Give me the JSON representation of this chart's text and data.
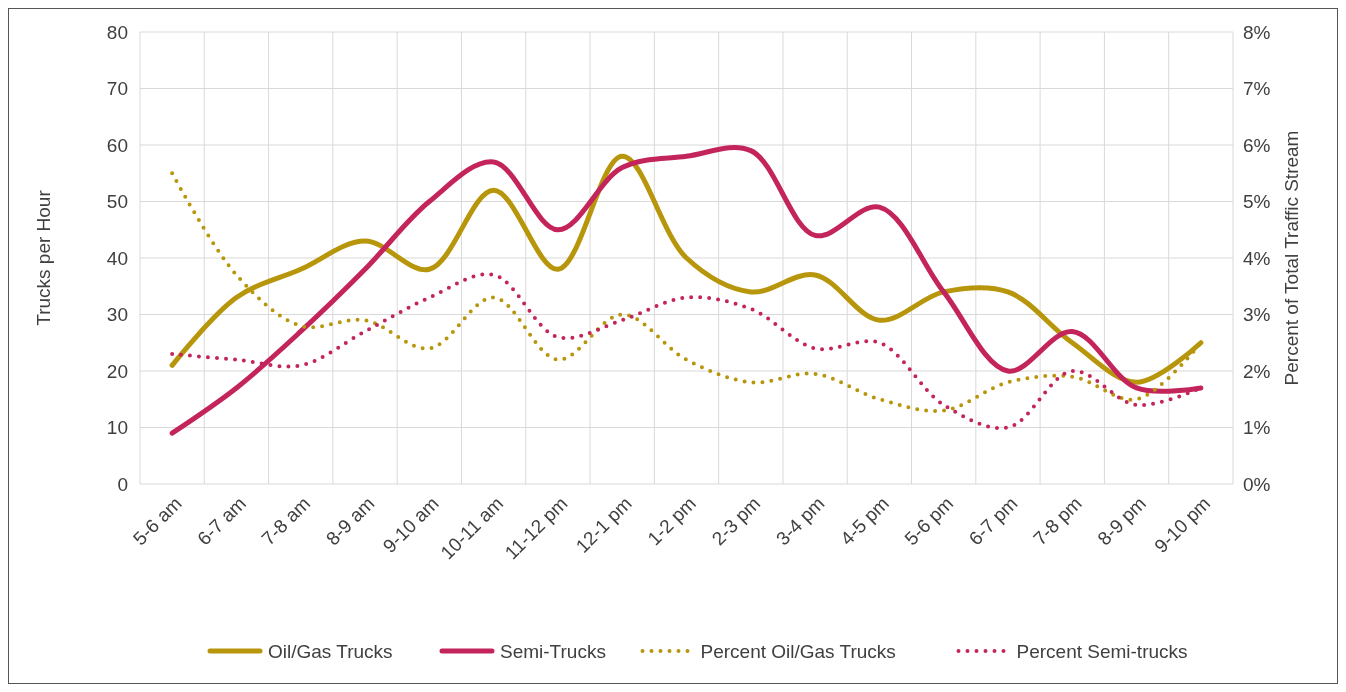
{
  "chart_data": {
    "type": "line",
    "ylabel": "Trucks per Hour",
    "y2label": "Percent of Total Traffic Stream",
    "categories": [
      "5-6 am",
      "6-7 am",
      "7-8 am",
      "8-9 am",
      "9-10 am",
      "10-11 am",
      "11-12 pm",
      "12-1 pm",
      "1-2 pm",
      "2-3 pm",
      "3-4 pm",
      "4-5 pm",
      "5-6 pm",
      "6-7 pm",
      "7-8 pm",
      "8-9 pm",
      "9-10 pm"
    ],
    "series": [
      {
        "name": "Oil/Gas Trucks",
        "color": "#b8960c",
        "line_style": "solid",
        "values": [
          21,
          33,
          38,
          43,
          38,
          52,
          38,
          58,
          40,
          34,
          37,
          29,
          34,
          34,
          25,
          18,
          25
        ]
      },
      {
        "name": "Semi-Trucks",
        "color": "#c4245c",
        "line_style": "solid",
        "values": [
          9,
          17,
          27,
          38,
          50,
          57,
          45,
          56,
          58,
          59,
          44,
          49,
          34,
          20,
          27,
          17,
          17
        ]
      },
      {
        "name": "Percent Oil/Gas Trucks",
        "color": "#b8960c",
        "line_style": "dotted",
        "axis": "y2",
        "values": [
          5.5,
          3.7,
          2.8,
          2.9,
          2.4,
          3.3,
          2.2,
          3.0,
          2.2,
          1.8,
          1.95,
          1.5,
          1.3,
          1.8,
          1.9,
          1.5,
          2.5
        ]
      },
      {
        "name": "Percent Semi-trucks",
        "color": "#c4245c",
        "line_style": "dotted",
        "axis": "y2",
        "values": [
          2.3,
          2.2,
          2.1,
          2.7,
          3.3,
          3.7,
          2.6,
          2.9,
          3.3,
          3.1,
          2.4,
          2.5,
          1.4,
          1.0,
          2.0,
          1.4,
          1.7
        ]
      }
    ],
    "ylim": [
      0,
      80
    ],
    "yticks": [
      0,
      10,
      20,
      30,
      40,
      50,
      60,
      70,
      80
    ],
    "y2lim": [
      0,
      8
    ],
    "y2ticks": [
      {
        "value": 0,
        "label": "0%"
      },
      {
        "value": 1,
        "label": "1%"
      },
      {
        "value": 2,
        "label": "2%"
      },
      {
        "value": 3,
        "label": "3%"
      },
      {
        "value": 4,
        "label": "4%"
      },
      {
        "value": 5,
        "label": "5%"
      },
      {
        "value": 6,
        "label": "6%"
      },
      {
        "value": 7,
        "label": "7%"
      },
      {
        "value": 8,
        "label": "8%"
      }
    ],
    "grid": true,
    "legend": "bottom",
    "marker": "none"
  }
}
